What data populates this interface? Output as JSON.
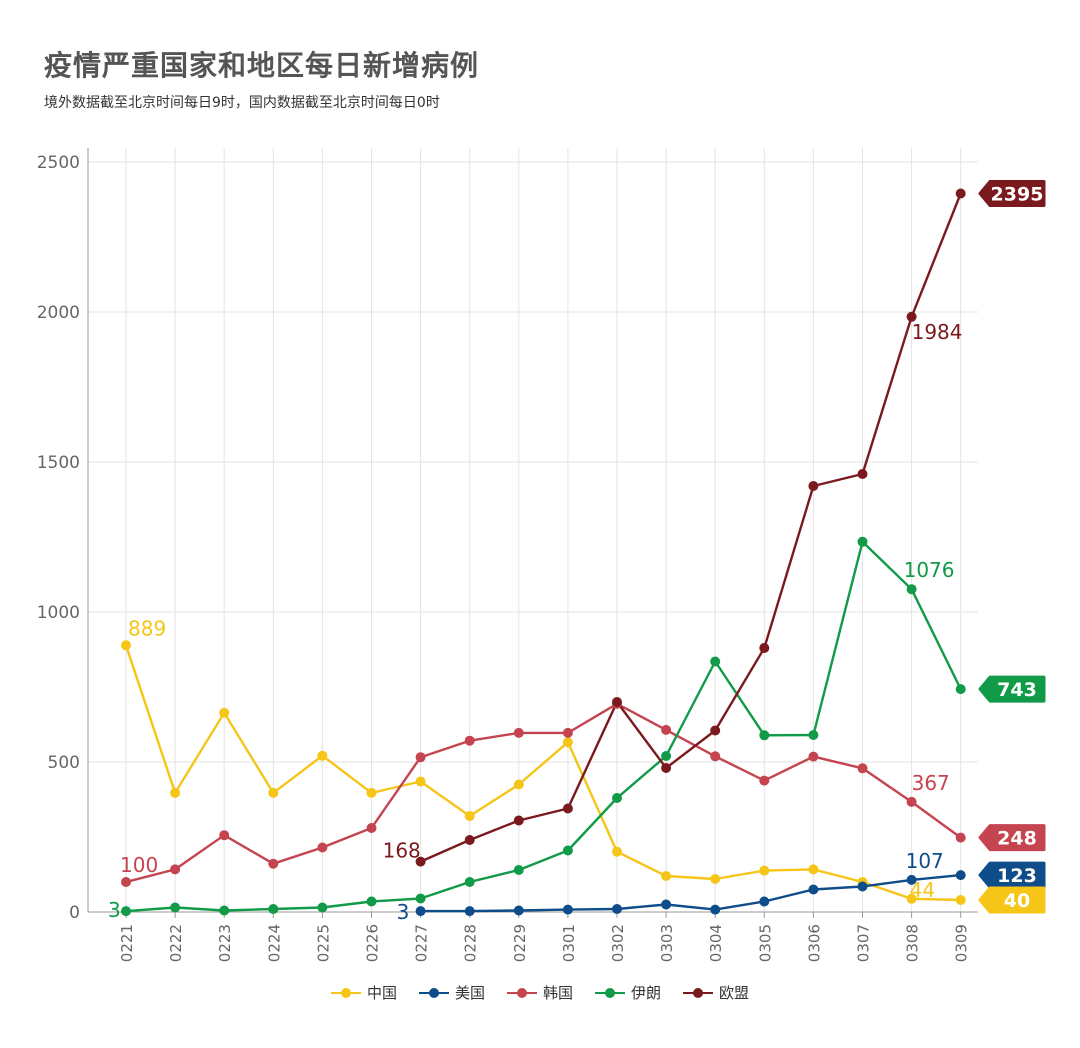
{
  "header": {
    "title": "疫情严重国家和地区每日新增病例",
    "subtitle": "境外数据截至北京时间每日9时，国内数据截至北京时间每日0时"
  },
  "chart_data": {
    "type": "line",
    "categories": [
      "0221",
      "0222",
      "0223",
      "0224",
      "0225",
      "0226",
      "0227",
      "0228",
      "0229",
      "0301",
      "0302",
      "0303",
      "0304",
      "0305",
      "0306",
      "0307",
      "0308",
      "0309"
    ],
    "ylim": [
      0,
      2500
    ],
    "yticks": [
      0,
      500,
      1000,
      1500,
      2000,
      2500
    ],
    "grid": true,
    "legend_position": "bottom",
    "series": [
      {
        "name": "中国",
        "color": "#F5C518",
        "values": [
          889,
          397,
          664,
          397,
          521,
          397,
          435,
          320,
          425,
          566,
          201,
          120,
          110,
          138,
          142,
          100,
          44,
          40
        ]
      },
      {
        "name": "美国",
        "color": "#0F4C8A",
        "values": [
          null,
          null,
          null,
          null,
          null,
          null,
          3,
          3,
          5,
          8,
          10,
          25,
          8,
          35,
          75,
          85,
          107,
          123
        ]
      },
      {
        "name": "韩国",
        "color": "#C4444F",
        "values": [
          100,
          142,
          256,
          161,
          215,
          280,
          516,
          571,
          597,
          597,
          694,
          607,
          519,
          438,
          518,
          479,
          367,
          248
        ]
      },
      {
        "name": "伊朗",
        "color": "#119A48",
        "values": [
          3,
          15,
          5,
          10,
          15,
          35,
          45,
          100,
          140,
          205,
          380,
          520,
          835,
          589,
          590,
          1234,
          1076,
          743
        ]
      },
      {
        "name": "欧盟",
        "color": "#7A1A1E",
        "values": [
          null,
          null,
          null,
          null,
          null,
          null,
          168,
          240,
          305,
          345,
          700,
          480,
          605,
          880,
          1420,
          1460,
          1984,
          2395
        ]
      }
    ],
    "point_labels": [
      {
        "series": "中国",
        "index": 0,
        "text": "889"
      },
      {
        "series": "中国",
        "index": 16,
        "text": "44"
      },
      {
        "series": "韩国",
        "index": 0,
        "text": "100"
      },
      {
        "series": "韩国",
        "index": 16,
        "text": "367"
      },
      {
        "series": "伊朗",
        "index": 0,
        "text": "3"
      },
      {
        "series": "伊朗",
        "index": 16,
        "text": "1076"
      },
      {
        "series": "美国",
        "index": 6,
        "text": "3"
      },
      {
        "series": "美国",
        "index": 16,
        "text": "107"
      },
      {
        "series": "欧盟",
        "index": 6,
        "text": "168"
      },
      {
        "series": "欧盟",
        "index": 16,
        "text": "1984"
      }
    ],
    "end_labels": [
      {
        "series": "欧盟",
        "text": "2395"
      },
      {
        "series": "伊朗",
        "text": "743"
      },
      {
        "series": "韩国",
        "text": "248"
      },
      {
        "series": "美国",
        "text": "123"
      },
      {
        "series": "中国",
        "text": "40"
      }
    ]
  }
}
